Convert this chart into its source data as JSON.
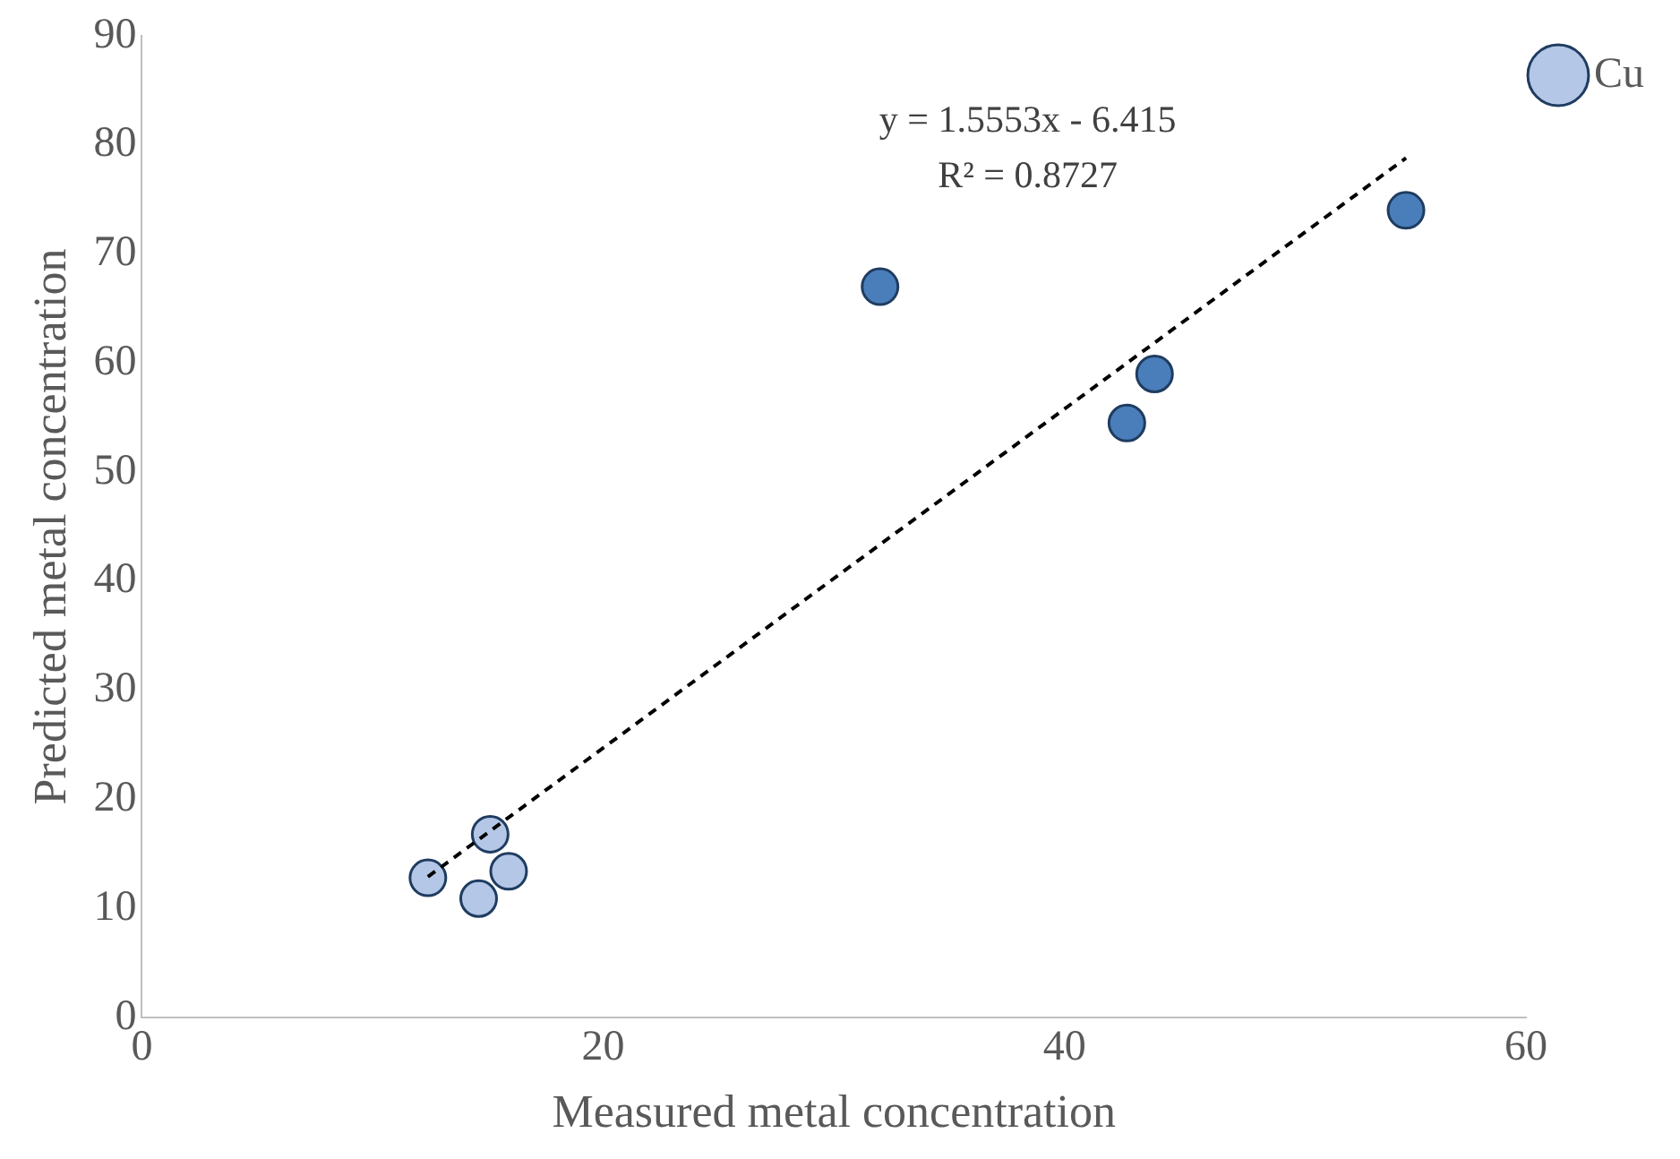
{
  "chart_data": {
    "type": "scatter",
    "xlabel": "Measured metal concentration",
    "ylabel": "Predicted metal concentration",
    "xlim": [
      0,
      60
    ],
    "xticks": [
      0,
      20,
      40,
      60
    ],
    "ylim": [
      0,
      90
    ],
    "yticks": [
      0,
      10,
      20,
      30,
      40,
      50,
      60,
      70,
      80,
      90
    ],
    "grid": false,
    "legend": "top right",
    "marker": "circle",
    "annotations": [
      "y = 1.5553x - 6.415",
      "R² = 0.8727"
    ],
    "series": [
      {
        "name": "Cu",
        "color": "#b4c7e7",
        "x": [
          12.4,
          15.1,
          14.6,
          15.9
        ],
        "values": [
          12.8,
          16.8,
          10.9,
          13.4
        ]
      },
      {
        "color": "#4a7ebb",
        "x": [
          32.0,
          42.7,
          43.9,
          54.8
        ],
        "values": [
          67.0,
          54.5,
          59.0,
          74.0
        ]
      },
      {
        "type": "line",
        "color": "#000000",
        "line_style": "dashed",
        "marker": "none",
        "x": [
          12.4,
          54.8
        ],
        "values": [
          12.9,
          78.8
        ]
      }
    ]
  }
}
